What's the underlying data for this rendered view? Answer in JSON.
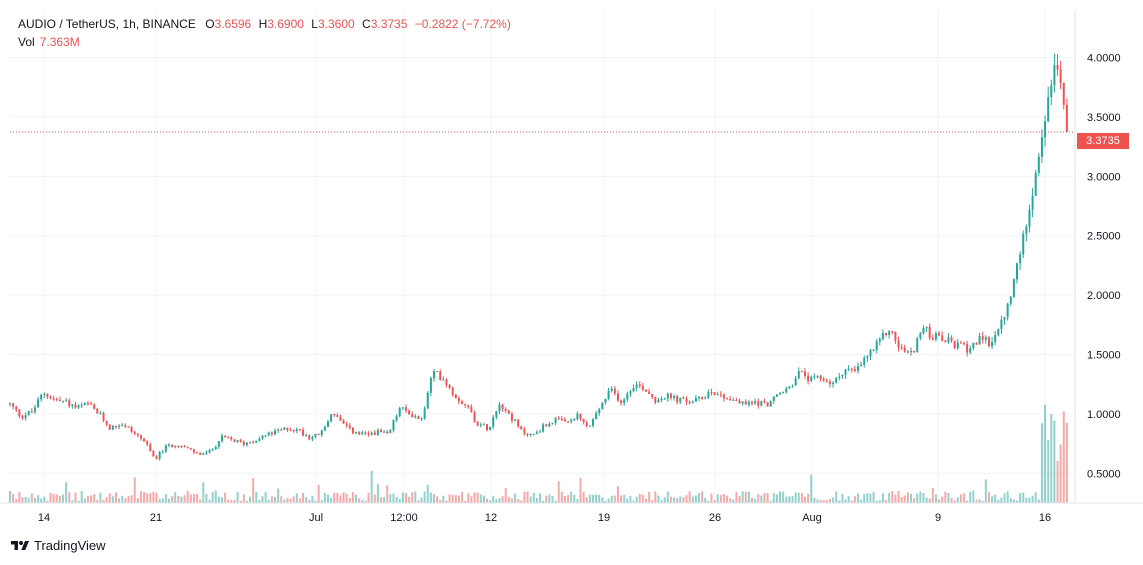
{
  "header": {
    "symbol": "AUDIO / TetherUS, 1h, BINANCE",
    "open_label": "O",
    "open": "3.6596",
    "high_label": "H",
    "high": "3.6900",
    "low_label": "L",
    "low": "3.3600",
    "close_label": "C",
    "close": "3.3735",
    "change": "−0.2822 (−7.72%)",
    "vol_label": "Vol",
    "vol_value": "7.363M"
  },
  "last_price_label": "3.3735",
  "brand": {
    "name": "TradingView"
  },
  "colors": {
    "up": "#26a69a",
    "down": "#ef5350",
    "grid": "#f0f3fa",
    "text": "#131722"
  },
  "chart_data": {
    "type": "candlestick",
    "timeframe": "1h",
    "x_tick_labels": [
      "14",
      "21",
      "Jul",
      "12:00",
      "12",
      "19",
      "26",
      "Aug",
      "9",
      "16"
    ],
    "y_tick_labels": [
      "0.5000",
      "1.0000",
      "1.5000",
      "2.0000",
      "2.5000",
      "3.0000",
      "3.5000",
      "4.0000"
    ],
    "y_ticks": [
      0.5,
      1.0,
      1.5,
      2.0,
      2.5,
      3.0,
      3.5,
      4.0
    ],
    "ylim": [
      0.25,
      4.4
    ],
    "grid": true,
    "last_price": 3.3735,
    "price_path": [
      {
        "t": 0,
        "p": 1.08
      },
      {
        "t": 1,
        "p": 0.98
      },
      {
        "t": 2,
        "p": 1.02
      },
      {
        "t": 3,
        "p": 1.18
      },
      {
        "t": 4,
        "p": 1.12
      },
      {
        "t": 5,
        "p": 1.1
      },
      {
        "t": 6,
        "p": 1.05
      },
      {
        "t": 7,
        "p": 1.08
      },
      {
        "t": 8,
        "p": 1.0
      },
      {
        "t": 9,
        "p": 0.88
      },
      {
        "t": 10,
        "p": 0.92
      },
      {
        "t": 11,
        "p": 0.85
      },
      {
        "t": 12,
        "p": 0.78
      },
      {
        "t": 13,
        "p": 0.62
      },
      {
        "t": 14,
        "p": 0.72
      },
      {
        "t": 15,
        "p": 0.75
      },
      {
        "t": 16,
        "p": 0.7
      },
      {
        "t": 17,
        "p": 0.66
      },
      {
        "t": 18,
        "p": 0.68
      },
      {
        "t": 19,
        "p": 0.8
      },
      {
        "t": 20,
        "p": 0.78
      },
      {
        "t": 21,
        "p": 0.75
      },
      {
        "t": 22,
        "p": 0.78
      },
      {
        "t": 23,
        "p": 0.82
      },
      {
        "t": 24,
        "p": 0.85
      },
      {
        "t": 25,
        "p": 0.88
      },
      {
        "t": 26,
        "p": 0.86
      },
      {
        "t": 27,
        "p": 0.8
      },
      {
        "t": 28,
        "p": 0.84
      },
      {
        "t": 29,
        "p": 1.02
      },
      {
        "t": 30,
        "p": 0.9
      },
      {
        "t": 31,
        "p": 0.84
      },
      {
        "t": 32,
        "p": 0.82
      },
      {
        "t": 33,
        "p": 0.85
      },
      {
        "t": 34,
        "p": 0.82
      },
      {
        "t": 35,
        "p": 1.05
      },
      {
        "t": 36,
        "p": 1.0
      },
      {
        "t": 37,
        "p": 0.95
      },
      {
        "t": 38,
        "p": 1.35
      },
      {
        "t": 39,
        "p": 1.3
      },
      {
        "t": 40,
        "p": 1.15
      },
      {
        "t": 41,
        "p": 1.08
      },
      {
        "t": 42,
        "p": 0.92
      },
      {
        "t": 43,
        "p": 0.88
      },
      {
        "t": 44,
        "p": 1.1
      },
      {
        "t": 45,
        "p": 0.98
      },
      {
        "t": 46,
        "p": 0.85
      },
      {
        "t": 47,
        "p": 0.82
      },
      {
        "t": 48,
        "p": 0.9
      },
      {
        "t": 49,
        "p": 0.95
      },
      {
        "t": 50,
        "p": 0.92
      },
      {
        "t": 51,
        "p": 0.98
      },
      {
        "t": 52,
        "p": 0.88
      },
      {
        "t": 53,
        "p": 1.05
      },
      {
        "t": 54,
        "p": 1.2
      },
      {
        "t": 55,
        "p": 1.1
      },
      {
        "t": 56,
        "p": 1.25
      },
      {
        "t": 57,
        "p": 1.22
      },
      {
        "t": 58,
        "p": 1.12
      },
      {
        "t": 59,
        "p": 1.15
      },
      {
        "t": 60,
        "p": 1.12
      },
      {
        "t": 61,
        "p": 1.1
      },
      {
        "t": 62,
        "p": 1.12
      },
      {
        "t": 63,
        "p": 1.2
      },
      {
        "t": 64,
        "p": 1.15
      },
      {
        "t": 65,
        "p": 1.12
      },
      {
        "t": 66,
        "p": 1.08
      },
      {
        "t": 67,
        "p": 1.1
      },
      {
        "t": 68,
        "p": 1.08
      },
      {
        "t": 69,
        "p": 1.15
      },
      {
        "t": 70,
        "p": 1.22
      },
      {
        "t": 71,
        "p": 1.35
      },
      {
        "t": 72,
        "p": 1.28
      },
      {
        "t": 73,
        "p": 1.3
      },
      {
        "t": 74,
        "p": 1.25
      },
      {
        "t": 75,
        "p": 1.38
      },
      {
        "t": 76,
        "p": 1.35
      },
      {
        "t": 77,
        "p": 1.48
      },
      {
        "t": 78,
        "p": 1.58
      },
      {
        "t": 79,
        "p": 1.72
      },
      {
        "t": 80,
        "p": 1.55
      },
      {
        "t": 81,
        "p": 1.5
      },
      {
        "t": 82,
        "p": 1.72
      },
      {
        "t": 83,
        "p": 1.65
      },
      {
        "t": 84,
        "p": 1.62
      },
      {
        "t": 85,
        "p": 1.58
      },
      {
        "t": 86,
        "p": 1.55
      },
      {
        "t": 87,
        "p": 1.62
      },
      {
        "t": 88,
        "p": 1.6
      },
      {
        "t": 89,
        "p": 1.72
      },
      {
        "t": 90,
        "p": 2.0
      },
      {
        "t": 91,
        "p": 2.45
      },
      {
        "t": 92,
        "p": 2.95
      },
      {
        "t": 93,
        "p": 3.4
      },
      {
        "t": 94,
        "p": 4.05
      },
      {
        "t": 95,
        "p": 3.3735
      }
    ]
  }
}
